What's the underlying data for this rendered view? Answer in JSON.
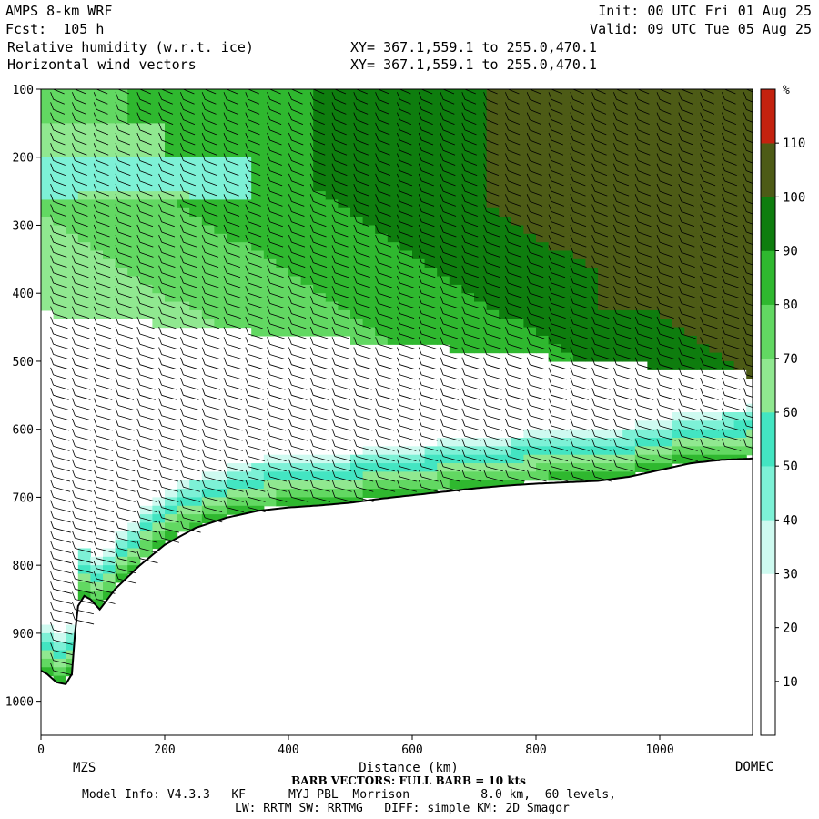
{
  "header": {
    "model": "AMPS 8-km WRF",
    "forecast": "Fcst:  105 h",
    "field1": "Relative humidity (w.r.t. ice)",
    "field2": "Horizontal wind vectors",
    "init": "Init: 00 UTC Fri 01 Aug 25",
    "valid": "Valid: 09 UTC Tue 05 Aug 25",
    "xy1": "XY= 367.1,559.1 to 255.0,470.1",
    "xy2": "XY= 367.1,559.1 to 255.0,470.1"
  },
  "chart_data": {
    "type": "heatmap",
    "xlabel": "Distance (km)",
    "x_range": [
      0,
      1150
    ],
    "x_ticks": [
      0,
      200,
      400,
      600,
      800,
      1000
    ],
    "y_range": [
      1050,
      100
    ],
    "y_ticks": [
      100,
      200,
      300,
      400,
      500,
      600,
      700,
      800,
      900,
      1000
    ],
    "endpoints": {
      "left": "MZS",
      "right": "DOMEC"
    },
    "colorbar": {
      "unit": "%",
      "levels": [
        10,
        20,
        30,
        40,
        50,
        60,
        70,
        80,
        90,
        100,
        110
      ],
      "colors": [
        "#ffffff",
        "#ffffff",
        "#ffffff",
        "#cefaf0",
        "#7df1d6",
        "#43e5c2",
        "#90e890",
        "#62d862",
        "#2fb82f",
        "#0e7d0e",
        "#4d5b16",
        "#c4220f"
      ]
    },
    "terrain": {
      "x": [
        0,
        10,
        25,
        40,
        50,
        55,
        60,
        70,
        80,
        95,
        120,
        160,
        200,
        250,
        300,
        350,
        400,
        450,
        500,
        550,
        600,
        650,
        700,
        750,
        800,
        850,
        900,
        950,
        1000,
        1050,
        1100,
        1150
      ],
      "p": [
        955,
        960,
        972,
        975,
        960,
        900,
        860,
        845,
        850,
        865,
        835,
        800,
        770,
        745,
        730,
        720,
        715,
        712,
        708,
        702,
        697,
        692,
        687,
        683,
        680,
        678,
        676,
        670,
        660,
        650,
        645,
        643
      ]
    },
    "wind_barb_note": "BARB VECTORS:  FULL BARB = 10 kts"
  },
  "footer": {
    "model_info": "Model Info: V4.3.3   KF      MYJ PBL  Morrison          8.0 km,  60 levels,",
    "physics": "LW: RRTM SW: RRTMG   DIFF: simple KM: 2D Smagor"
  }
}
